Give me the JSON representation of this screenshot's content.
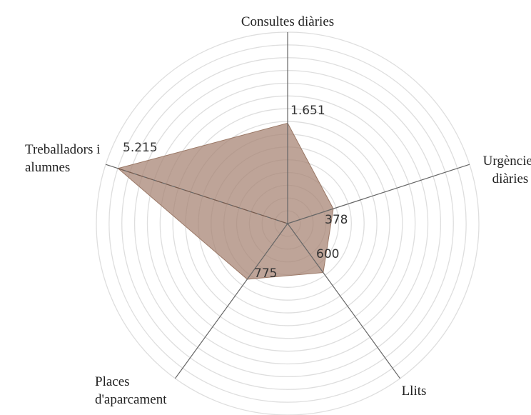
{
  "chart_data": {
    "type": "radar",
    "categories": [
      "Consultes diàries",
      "Urgències diàries",
      "Llits",
      "Places d'aparcament",
      "Treballadors i alumnes"
    ],
    "values": [
      1651,
      378,
      600,
      775,
      5215
    ],
    "value_labels": [
      "1.651",
      "378",
      "600",
      "775",
      "5.215"
    ],
    "color": "#a88675",
    "rlim": [
      0,
      6000
    ],
    "scale": "sqrt",
    "grid": true
  }
}
